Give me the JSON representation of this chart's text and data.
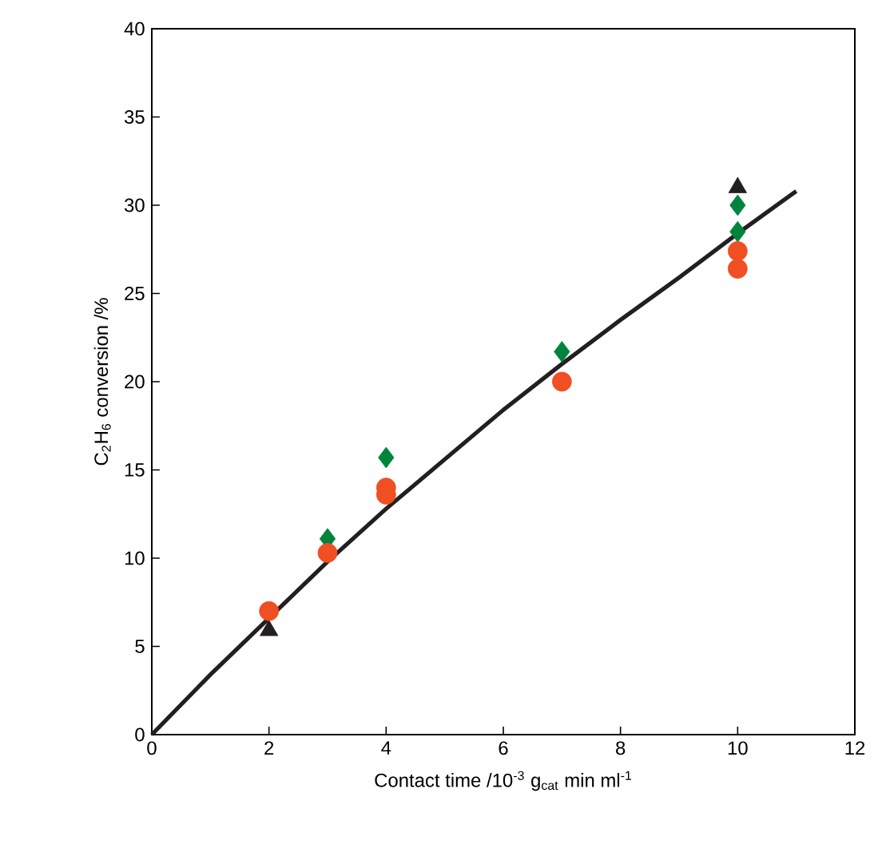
{
  "chart_data": {
    "type": "scatter",
    "xlabel": "Contact time /10$^{-3}$ g$_{cat}$ min ml$^{-1}$",
    "ylabel": "C$_{2}$H$_{6}$ conversion /%",
    "xlim": [
      0,
      12
    ],
    "ylim": [
      0,
      40
    ],
    "xticks": [
      0,
      2,
      4,
      6,
      8,
      10,
      12
    ],
    "yticks": [
      0,
      5,
      10,
      15,
      20,
      25,
      30,
      35,
      40
    ],
    "series": [
      {
        "type": "line",
        "color": "#231f20",
        "marker": "none",
        "line_style": "solid",
        "x": [
          0,
          1,
          2,
          3,
          4,
          5,
          6,
          7,
          8,
          9,
          10,
          11
        ],
        "values": [
          0,
          3.4,
          6.6,
          9.8,
          12.8,
          15.6,
          18.4,
          21.0,
          23.5,
          25.9,
          28.4,
          30.8
        ]
      },
      {
        "color": "#231f20",
        "marker": "triangle",
        "x": [
          2,
          10
        ],
        "values": [
          5.9,
          31.0
        ]
      },
      {
        "color": "#00843d",
        "marker": "diamond",
        "x": [
          4,
          10
        ],
        "values": [
          15.7,
          30.0
        ]
      },
      {
        "color": "#00843d",
        "marker": "diamond",
        "x": [
          3,
          7,
          10
        ],
        "values": [
          11.1,
          21.7,
          28.5
        ]
      },
      {
        "color": "#f04e23",
        "marker": "circle",
        "x": [
          2,
          4,
          10
        ],
        "values": [
          7.0,
          14.0,
          27.4
        ]
      },
      {
        "color": "#f04e23",
        "marker": "circle",
        "x": [
          3,
          4,
          7,
          10
        ],
        "values": [
          10.3,
          13.6,
          20.0,
          26.4
        ]
      }
    ]
  }
}
